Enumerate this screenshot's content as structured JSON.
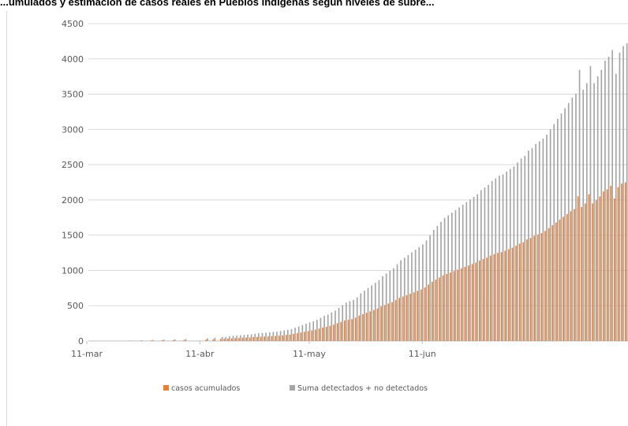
{
  "chart_data": {
    "type": "bar",
    "title": "...umulados y estimación de casos reales en Pueblos Indígenas según niveles de subre...",
    "ylim": [
      0,
      4500
    ],
    "y_ticks": [
      0,
      500,
      1000,
      1500,
      2000,
      2500,
      3000,
      3500,
      4000,
      4500
    ],
    "x_ticks": [
      "11-mar",
      "11-abr",
      "11-may",
      "11-jun"
    ],
    "grid": true,
    "legend_position": "bottom",
    "colors": {
      "series1": "#ED7D31",
      "series2": "#A5A5A5",
      "grid": "#d9d9d9",
      "axis": "#bfbfbf"
    },
    "series": [
      {
        "name": "casos acumulados",
        "values": [
          0,
          0,
          0,
          0,
          0,
          0,
          0,
          0,
          0,
          0,
          0,
          3,
          0,
          0,
          5,
          0,
          0,
          8,
          0,
          0,
          10,
          0,
          0,
          12,
          0,
          0,
          15,
          0,
          0,
          0,
          0,
          0,
          20,
          0,
          25,
          0,
          30,
          32,
          35,
          38,
          40,
          43,
          45,
          48,
          50,
          55,
          58,
          60,
          63,
          65,
          68,
          70,
          75,
          80,
          85,
          90,
          100,
          110,
          120,
          130,
          140,
          150,
          160,
          175,
          190,
          200,
          215,
          230,
          250,
          270,
          290,
          300,
          310,
          330,
          360,
          380,
          400,
          420,
          440,
          460,
          490,
          510,
          530,
          550,
          580,
          610,
          630,
          650,
          670,
          690,
          710,
          730,
          760,
          800,
          840,
          870,
          900,
          930,
          950,
          970,
          990,
          1010,
          1030,
          1050,
          1070,
          1090,
          1110,
          1140,
          1160,
          1180,
          1210,
          1230,
          1250,
          1260,
          1280,
          1300,
          1320,
          1350,
          1380,
          1400,
          1440,
          1460,
          1490,
          1510,
          1530,
          1560,
          1600,
          1640,
          1680,
          1720,
          1760,
          1800,
          1840,
          1870,
          2050,
          1900,
          1950,
          2080,
          1950,
          2000,
          2050,
          2120,
          2150,
          2200,
          2020,
          2180,
          2230,
          2250
        ]
      },
      {
        "name": "Suma detectados + no detectados",
        "values": [
          0,
          0,
          0,
          0,
          0,
          0,
          0,
          0,
          0,
          0,
          0,
          6,
          0,
          0,
          10,
          0,
          0,
          15,
          0,
          0,
          19,
          0,
          0,
          23,
          0,
          0,
          28,
          0,
          0,
          0,
          0,
          0,
          38,
          0,
          47,
          0,
          56,
          60,
          66,
          71,
          75,
          81,
          85,
          90,
          94,
          103,
          109,
          113,
          118,
          122,
          128,
          131,
          141,
          150,
          160,
          169,
          188,
          206,
          225,
          244,
          263,
          281,
          300,
          328,
          356,
          375,
          403,
          431,
          469,
          506,
          544,
          563,
          581,
          619,
          675,
          713,
          750,
          788,
          825,
          863,
          919,
          956,
          994,
          1031,
          1088,
          1144,
          1181,
          1219,
          1256,
          1294,
          1331,
          1369,
          1425,
          1500,
          1575,
          1631,
          1688,
          1744,
          1781,
          1819,
          1856,
          1894,
          1931,
          1969,
          2006,
          2044,
          2081,
          2138,
          2175,
          2213,
          2269,
          2306,
          2344,
          2363,
          2400,
          2438,
          2475,
          2531,
          2588,
          2625,
          2700,
          2738,
          2794,
          2831,
          2869,
          2925,
          3000,
          3075,
          3150,
          3225,
          3300,
          3375,
          3450,
          3506,
          3844,
          3563,
          3656,
          3900,
          3656,
          3750,
          3844,
          3975,
          4031,
          4125,
          3788,
          4088,
          4181,
          4219
        ]
      }
    ]
  }
}
